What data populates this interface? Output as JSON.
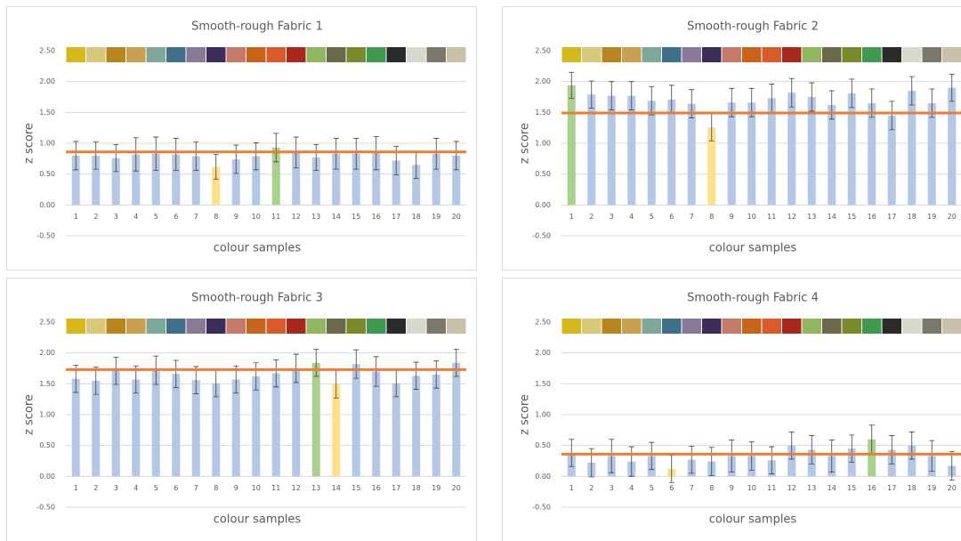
{
  "chart_data": [
    {
      "type": "bar",
      "title": "Smooth-rough Fabric 1",
      "y_label": "z score",
      "x_label": "colour samples",
      "categories": [
        "1",
        "2",
        "3",
        "4",
        "5",
        "6",
        "7",
        "8",
        "9",
        "10",
        "11",
        "12",
        "13",
        "14",
        "15",
        "16",
        "17",
        "18",
        "19",
        "20"
      ],
      "values": [
        0.8,
        0.8,
        0.76,
        0.82,
        0.83,
        0.82,
        0.79,
        0.62,
        0.74,
        0.79,
        0.93,
        0.85,
        0.77,
        0.83,
        0.83,
        0.84,
        0.72,
        0.65,
        0.83,
        0.8
      ],
      "errors": [
        0.23,
        0.22,
        0.22,
        0.27,
        0.27,
        0.26,
        0.23,
        0.2,
        0.23,
        0.22,
        0.23,
        0.25,
        0.21,
        0.25,
        0.25,
        0.27,
        0.23,
        0.22,
        0.25,
        0.23
      ],
      "colors": [
        "#b4c7e7",
        "#b4c7e7",
        "#b4c7e7",
        "#b4c7e7",
        "#b4c7e7",
        "#b4c7e7",
        "#b4c7e7",
        "#ffe08a",
        "#b4c7e7",
        "#b4c7e7",
        "#a9d18e",
        "#b4c7e7",
        "#b4c7e7",
        "#b4c7e7",
        "#b4c7e7",
        "#b4c7e7",
        "#b4c7e7",
        "#b4c7e7",
        "#b4c7e7",
        "#b4c7e7"
      ],
      "reference_line": 0.86,
      "reference_color": "#ed7d31",
      "ylim": [
        -0.5,
        2.5
      ],
      "yticks": [
        {
          "value": -0.5,
          "label": "-0.50"
        },
        {
          "value": 0,
          "label": "0.00"
        },
        {
          "value": 0.5,
          "label": "0.50"
        },
        {
          "value": 1,
          "label": "1.00"
        },
        {
          "value": 1.5,
          "label": "1.50"
        },
        {
          "value": 2,
          "label": "2.00"
        },
        {
          "value": 2.5,
          "label": "2.50"
        }
      ],
      "grid": true,
      "swatches": [
        "#d4b81c",
        "#d8c97a",
        "#b8861c",
        "#c9a050",
        "#7fa89a",
        "#3f6f8a",
        "#8a7a9a",
        "#3a2d5a",
        "#c87a6a",
        "#c8641a",
        "#d95a2a",
        "#a8281e",
        "#8fb860",
        "#6a6a4a",
        "#7a8a2a",
        "#3f9a50",
        "#2a2a2a",
        "#d8d8cc",
        "#7a7868",
        "#c8c0aa"
      ]
    },
    {
      "type": "bar",
      "title": "Smooth-rough Fabric 2",
      "y_label": "z score",
      "x_label": "colour samples",
      "categories": [
        "1",
        "2",
        "3",
        "4",
        "5",
        "6",
        "7",
        "8",
        "9",
        "10",
        "11",
        "12",
        "13",
        "14",
        "15",
        "16",
        "17",
        "18",
        "19",
        "20"
      ],
      "values": [
        1.94,
        1.79,
        1.77,
        1.77,
        1.69,
        1.71,
        1.64,
        1.26,
        1.66,
        1.66,
        1.73,
        1.82,
        1.75,
        1.62,
        1.81,
        1.65,
        1.45,
        1.85,
        1.65,
        1.9
      ],
      "errors": [
        0.21,
        0.22,
        0.23,
        0.23,
        0.23,
        0.23,
        0.23,
        0.22,
        0.23,
        0.23,
        0.23,
        0.23,
        0.23,
        0.23,
        0.23,
        0.23,
        0.23,
        0.23,
        0.23,
        0.22
      ],
      "colors": [
        "#a9d18e",
        "#b4c7e7",
        "#b4c7e7",
        "#b4c7e7",
        "#b4c7e7",
        "#b4c7e7",
        "#b4c7e7",
        "#ffe08a",
        "#b4c7e7",
        "#b4c7e7",
        "#b4c7e7",
        "#b4c7e7",
        "#b4c7e7",
        "#b4c7e7",
        "#b4c7e7",
        "#b4c7e7",
        "#b4c7e7",
        "#b4c7e7",
        "#b4c7e7",
        "#b4c7e7"
      ],
      "reference_line": 1.49,
      "reference_color": "#ed7d31",
      "ylim": [
        -0.5,
        2.5
      ],
      "yticks": [
        {
          "value": -0.5,
          "label": "-0.50"
        },
        {
          "value": 0,
          "label": "0.00"
        },
        {
          "value": 0.5,
          "label": "0.50"
        },
        {
          "value": 1,
          "label": "1.00"
        },
        {
          "value": 1.5,
          "label": "1.50"
        },
        {
          "value": 2,
          "label": "2.00"
        },
        {
          "value": 2.5,
          "label": "2.50"
        }
      ],
      "grid": true,
      "swatches": [
        "#d4b81c",
        "#d8c97a",
        "#b8861c",
        "#c9a050",
        "#7fa89a",
        "#3f6f8a",
        "#8a7a9a",
        "#3a2d5a",
        "#c87a6a",
        "#c8641a",
        "#d95a2a",
        "#a8281e",
        "#8fb860",
        "#6a6a4a",
        "#7a8a2a",
        "#3f9a50",
        "#2a2a2a",
        "#d8d8cc",
        "#7a7868",
        "#c8c0aa"
      ]
    },
    {
      "type": "bar",
      "title": "Smooth-rough Fabric 3",
      "y_label": "z score",
      "x_label": "colour samples",
      "categories": [
        "1",
        "2",
        "3",
        "4",
        "5",
        "6",
        "7",
        "8",
        "9",
        "10",
        "11",
        "12",
        "13",
        "14",
        "15",
        "16",
        "17",
        "18",
        "19",
        "20"
      ],
      "values": [
        1.58,
        1.55,
        1.71,
        1.57,
        1.72,
        1.66,
        1.56,
        1.51,
        1.57,
        1.62,
        1.67,
        1.75,
        1.84,
        1.5,
        1.82,
        1.7,
        1.51,
        1.63,
        1.65,
        1.84
      ],
      "errors": [
        0.22,
        0.22,
        0.22,
        0.22,
        0.23,
        0.22,
        0.22,
        0.22,
        0.22,
        0.22,
        0.22,
        0.23,
        0.22,
        0.23,
        0.23,
        0.24,
        0.22,
        0.22,
        0.22,
        0.22
      ],
      "colors": [
        "#b4c7e7",
        "#b4c7e7",
        "#b4c7e7",
        "#b4c7e7",
        "#b4c7e7",
        "#b4c7e7",
        "#b4c7e7",
        "#b4c7e7",
        "#b4c7e7",
        "#b4c7e7",
        "#b4c7e7",
        "#b4c7e7",
        "#a9d18e",
        "#ffe08a",
        "#b4c7e7",
        "#b4c7e7",
        "#b4c7e7",
        "#b4c7e7",
        "#b4c7e7",
        "#b4c7e7"
      ],
      "reference_line": 1.73,
      "reference_color": "#ed7d31",
      "ylim": [
        -0.5,
        2.5
      ],
      "yticks": [
        {
          "value": -0.5,
          "label": "-0.50"
        },
        {
          "value": 0,
          "label": "0.00"
        },
        {
          "value": 0.5,
          "label": "0.50"
        },
        {
          "value": 1,
          "label": "1.00"
        },
        {
          "value": 1.5,
          "label": "1.50"
        },
        {
          "value": 2,
          "label": "2.00"
        },
        {
          "value": 2.5,
          "label": "2.50"
        }
      ],
      "grid": true,
      "swatches": [
        "#d4b81c",
        "#d8c97a",
        "#b8861c",
        "#c9a050",
        "#7fa89a",
        "#3f6f8a",
        "#8a7a9a",
        "#3a2d5a",
        "#c87a6a",
        "#c8641a",
        "#d95a2a",
        "#a8281e",
        "#8fb860",
        "#6a6a4a",
        "#7a8a2a",
        "#3f9a50",
        "#2a2a2a",
        "#d8d8cc",
        "#7a7868",
        "#c8c0aa"
      ]
    },
    {
      "type": "bar",
      "title": "Smooth-rough Fabric 4",
      "y_label": "z score",
      "x_label": "colour samples",
      "categories": [
        "1",
        "2",
        "3",
        "4",
        "5",
        "6",
        "7",
        "8",
        "9",
        "10",
        "11",
        "12",
        "13",
        "14",
        "15",
        "16",
        "17",
        "18",
        "19",
        "20"
      ],
      "values": [
        0.38,
        0.22,
        0.33,
        0.24,
        0.33,
        0.12,
        0.27,
        0.24,
        0.33,
        0.33,
        0.26,
        0.5,
        0.43,
        0.33,
        0.45,
        0.6,
        0.43,
        0.5,
        0.33,
        0.17
      ],
      "errors": [
        0.22,
        0.23,
        0.27,
        0.24,
        0.22,
        0.22,
        0.22,
        0.23,
        0.26,
        0.23,
        0.22,
        0.22,
        0.23,
        0.26,
        0.22,
        0.23,
        0.23,
        0.22,
        0.25,
        0.23
      ],
      "colors": [
        "#b4c7e7",
        "#b4c7e7",
        "#b4c7e7",
        "#b4c7e7",
        "#b4c7e7",
        "#ffe08a",
        "#b4c7e7",
        "#b4c7e7",
        "#b4c7e7",
        "#b4c7e7",
        "#b4c7e7",
        "#b4c7e7",
        "#b4c7e7",
        "#b4c7e7",
        "#b4c7e7",
        "#a9d18e",
        "#b4c7e7",
        "#b4c7e7",
        "#b4c7e7",
        "#b4c7e7"
      ],
      "reference_line": 0.36,
      "reference_color": "#ed7d31",
      "ylim": [
        -0.5,
        2.5
      ],
      "yticks": [
        {
          "value": -0.5,
          "label": "-0.50"
        },
        {
          "value": 0,
          "label": "0.00"
        },
        {
          "value": 0.5,
          "label": "0.50"
        },
        {
          "value": 1,
          "label": "1.00"
        },
        {
          "value": 1.5,
          "label": "1.50"
        },
        {
          "value": 2,
          "label": "2.00"
        },
        {
          "value": 2.5,
          "label": "2.50"
        }
      ],
      "grid": true,
      "swatches": [
        "#d4b81c",
        "#d8c97a",
        "#b8861c",
        "#c9a050",
        "#7fa89a",
        "#3f6f8a",
        "#8a7a9a",
        "#3a2d5a",
        "#c87a6a",
        "#c8641a",
        "#d95a2a",
        "#a8281e",
        "#8fb860",
        "#6a6a4a",
        "#7a8a2a",
        "#3f9a50",
        "#2a2a2a",
        "#d8d8cc",
        "#7a7868",
        "#c8c0aa"
      ]
    }
  ]
}
